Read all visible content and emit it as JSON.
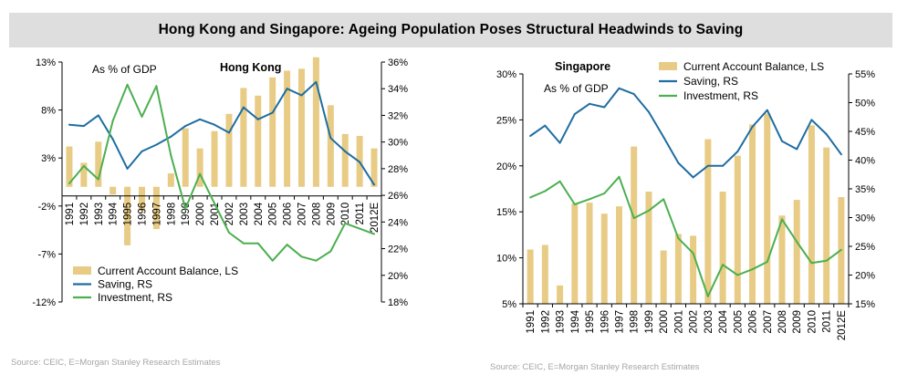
{
  "title": "Hong Kong and Singapore: Ageing Population Poses Structural Headwinds to Saving",
  "colors": {
    "bar": "#e8cc85",
    "saving": "#1f6da2",
    "investment": "#4caf50",
    "title_bg": "#dedede"
  },
  "chart_data": [
    {
      "type": "bar",
      "title": "Hong Kong",
      "annotation": "As % of GDP",
      "categories": [
        "1991",
        "1992",
        "1993",
        "1994",
        "1995",
        "1996",
        "1997",
        "1998",
        "1999",
        "2000",
        "2001",
        "2002",
        "2003",
        "2004",
        "2005",
        "2006",
        "2007",
        "2008",
        "2009",
        "2010",
        "2011",
        "2012E"
      ],
      "left_axis": {
        "ylim": [
          -12,
          13
        ],
        "ticks": [
          -12,
          -7,
          -2,
          3,
          8,
          13
        ],
        "tick_labels": [
          "-12%",
          "-7%",
          "-2%",
          "3%",
          "8%",
          "13%"
        ]
      },
      "right_axis": {
        "ylim": [
          18,
          36
        ],
        "ticks": [
          18,
          20,
          22,
          24,
          26,
          28,
          30,
          32,
          34,
          36
        ],
        "tick_labels": [
          "18%",
          "20%",
          "22%",
          "24%",
          "26%",
          "28%",
          "30%",
          "32%",
          "34%",
          "36%"
        ]
      },
      "series": [
        {
          "name": "Current Account Balance, LS",
          "type": "bar",
          "axis": "left",
          "values": [
            4.2,
            2.5,
            4.7,
            -0.8,
            -6.1,
            -2.5,
            -4.4,
            1.4,
            6.1,
            4.0,
            5.8,
            7.6,
            10.3,
            9.5,
            11.4,
            12.1,
            12.3,
            13.5,
            8.5,
            5.5,
            5.3,
            4.0
          ]
        },
        {
          "name": "Saving, RS",
          "type": "line",
          "axis": "right",
          "values": [
            31.3,
            31.2,
            32.0,
            30.2,
            28.0,
            29.3,
            29.8,
            30.4,
            31.2,
            31.7,
            31.3,
            30.7,
            32.6,
            31.7,
            32.2,
            34.0,
            33.5,
            34.5,
            30.3,
            29.3,
            28.5,
            26.8
          ]
        },
        {
          "name": "Investment, RS",
          "type": "line",
          "axis": "right",
          "values": [
            26.9,
            28.2,
            27.2,
            31.6,
            34.3,
            31.9,
            34.2,
            29.0,
            25.0,
            27.6,
            25.4,
            23.2,
            22.4,
            22.4,
            21.1,
            22.3,
            21.4,
            21.1,
            21.8,
            23.9,
            23.5,
            23.1
          ]
        }
      ],
      "legend": [
        "Current Account Balance, LS",
        "Saving, RS",
        "Investment, RS"
      ],
      "legend_position": "bottom-left",
      "source": "Source: CEIC, E=Morgan Stanley Research Estimates"
    },
    {
      "type": "bar",
      "title": "Singapore",
      "annotation": "As % of GDP",
      "categories": [
        "1991",
        "1992",
        "1993",
        "1994",
        "1995",
        "1996",
        "1997",
        "1998",
        "1999",
        "2000",
        "2001",
        "2002",
        "2003",
        "2004",
        "2005",
        "2006",
        "2007",
        "2008",
        "2009",
        "2010",
        "2011",
        "2012E"
      ],
      "left_axis": {
        "ylim": [
          5,
          30
        ],
        "ticks": [
          5,
          10,
          15,
          20,
          25,
          30
        ],
        "tick_labels": [
          "5%",
          "10%",
          "15%",
          "20%",
          "25%",
          "30%"
        ]
      },
      "right_axis": {
        "ylim": [
          15,
          55
        ],
        "ticks": [
          15,
          20,
          25,
          30,
          35,
          40,
          45,
          50,
          55
        ],
        "tick_labels": [
          "15%",
          "20%",
          "25%",
          "30%",
          "35%",
          "40%",
          "45%",
          "50%",
          "55%"
        ]
      },
      "series": [
        {
          "name": "Current Account Balance, LS",
          "type": "bar",
          "axis": "left",
          "values": [
            10.9,
            11.4,
            7.0,
            15.9,
            16.0,
            14.8,
            15.6,
            22.1,
            17.2,
            10.8,
            12.6,
            12.4,
            22.9,
            17.2,
            21.1,
            24.5,
            25.7,
            14.6,
            16.3,
            24.4,
            22.0,
            16.6
          ]
        },
        {
          "name": "Saving, RS",
          "type": "line",
          "axis": "right",
          "values": [
            44.2,
            46.0,
            43.0,
            48.0,
            49.8,
            49.2,
            52.5,
            51.5,
            48.4,
            44.0,
            39.5,
            37.0,
            39.0,
            39.0,
            41.5,
            45.8,
            48.7,
            43.3,
            41.9,
            47.0,
            44.5,
            41.0
          ]
        },
        {
          "name": "Investment, RS",
          "type": "line",
          "axis": "right",
          "values": [
            33.5,
            34.6,
            36.3,
            32.3,
            33.2,
            34.2,
            37.1,
            29.9,
            31.2,
            33.2,
            26.4,
            23.8,
            16.3,
            21.8,
            20.0,
            21.0,
            22.3,
            29.7,
            25.8,
            22.1,
            22.5,
            24.4
          ]
        }
      ],
      "legend": [
        "Current Account Balance, LS",
        "Saving, RS",
        "Investment, RS"
      ],
      "legend_position": "top-right",
      "source": "Source: CEIC, E=Morgan Stanley Research Estimates"
    }
  ]
}
